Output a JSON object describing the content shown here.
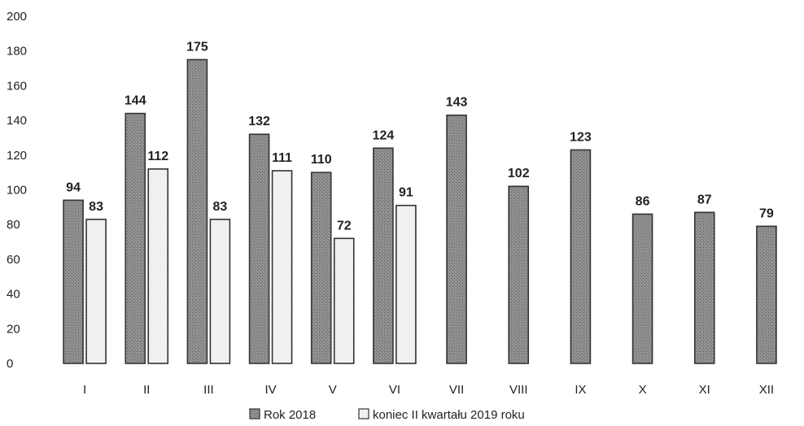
{
  "chart_data": {
    "type": "bar",
    "title": "",
    "xlabel": "",
    "ylabel": "",
    "ylim": [
      0,
      200
    ],
    "yticks": [
      0,
      20,
      40,
      60,
      80,
      100,
      120,
      140,
      160,
      180,
      200
    ],
    "categories": [
      "I",
      "II",
      "III",
      "IV",
      "V",
      "VI",
      "VII",
      "VIII",
      "IX",
      "X",
      "XI",
      "XII"
    ],
    "series": [
      {
        "name": "Rok 2018",
        "color": "#8a8a8a",
        "values": [
          94,
          144,
          175,
          132,
          110,
          124,
          143,
          102,
          123,
          86,
          87,
          79
        ]
      },
      {
        "name": "koniec II kwartału 2019 roku",
        "color": "#f2f2f2",
        "values": [
          83,
          112,
          83,
          111,
          72,
          91,
          null,
          null,
          null,
          null,
          null,
          null
        ]
      }
    ],
    "data_labels": true,
    "grid": false,
    "legend": "bottom-center"
  }
}
